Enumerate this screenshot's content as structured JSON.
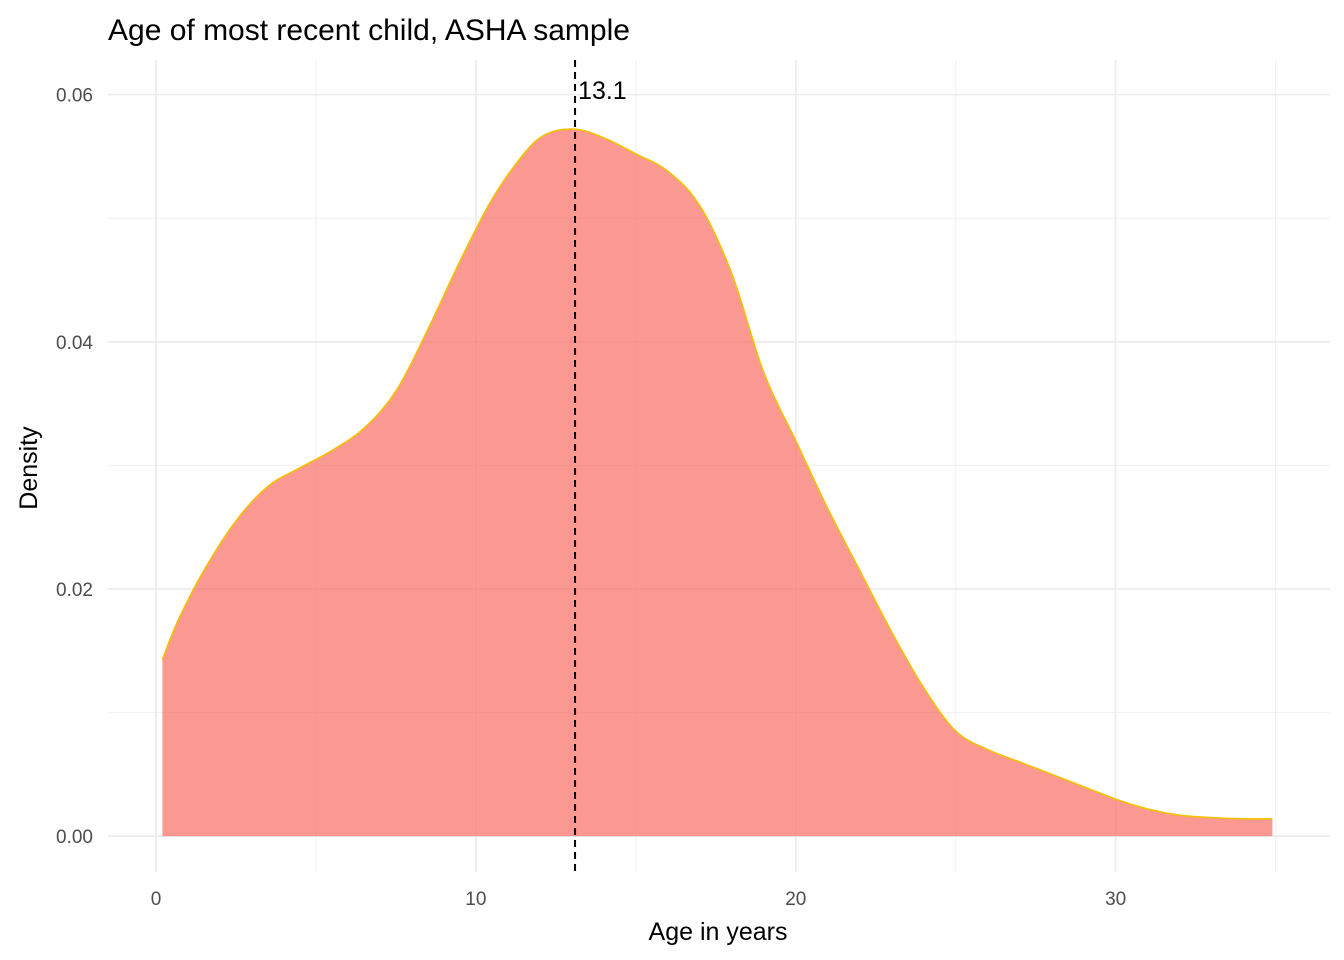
{
  "chart_data": {
    "type": "area",
    "title": "Age of most recent child, ASHA sample",
    "xlabel": "Age in years",
    "ylabel": "Density",
    "xlim": [
      -1.5,
      36.7
    ],
    "ylim": [
      -0.0029,
      0.0628
    ],
    "x_ticks": [
      0,
      10,
      20,
      30
    ],
    "x_tick_labels": [
      "0",
      "10",
      "20",
      "30"
    ],
    "y_ticks": [
      0.0,
      0.02,
      0.04,
      0.06
    ],
    "y_tick_labels": [
      "0.00",
      "0.02",
      "0.04",
      "0.06"
    ],
    "grid": true,
    "series": [
      {
        "name": "density",
        "fill": "#f8766d",
        "line_color": "#f5c000",
        "x": [
          0.2,
          0.7,
          1.5,
          2.5,
          3.5,
          4.5,
          5.5,
          6.5,
          7.5,
          8.5,
          9.5,
          10.5,
          11.5,
          12.2,
          13.1,
          14.0,
          15.0,
          16.0,
          17.0,
          18.0,
          19.0,
          20.0,
          21.0,
          22.0,
          23.0,
          24.0,
          25.0,
          26.0,
          27.0,
          28.0,
          29.0,
          30.0,
          31.0,
          32.0,
          33.0,
          34.0,
          34.9
        ],
        "y": [
          0.0143,
          0.0175,
          0.0215,
          0.0255,
          0.0283,
          0.0298,
          0.0312,
          0.033,
          0.036,
          0.041,
          0.0465,
          0.0515,
          0.0552,
          0.0568,
          0.0572,
          0.0565,
          0.0552,
          0.0538,
          0.051,
          0.0455,
          0.0375,
          0.032,
          0.0265,
          0.0215,
          0.0165,
          0.012,
          0.0085,
          0.007,
          0.006,
          0.005,
          0.004,
          0.003,
          0.0022,
          0.0017,
          0.0015,
          0.0014,
          0.0014
        ]
      }
    ],
    "annotations": [
      {
        "type": "vline",
        "x": 13.1,
        "label": "13.1",
        "style": "dashed",
        "color": "#000000"
      }
    ]
  }
}
